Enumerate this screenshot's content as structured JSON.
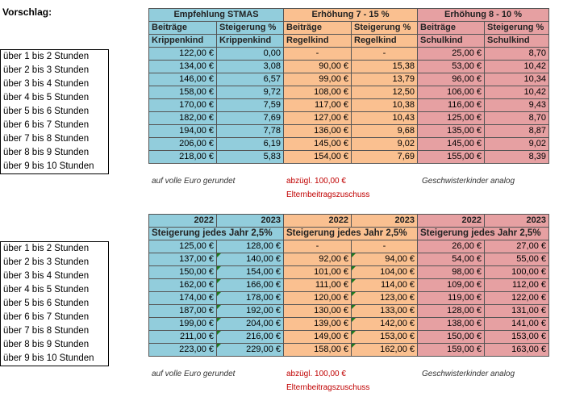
{
  "title": "Vorschlag:",
  "hours": [
    "über 1 bis 2 Stunden",
    "über 2 bis 3 Stunden",
    "über 3 bis 4 Stunden",
    "über 4 bis 5 Stunden",
    "über 5 bis 6 Stunden",
    "über 6 bis 7 Stunden",
    "über 7 bis 8 Stunden",
    "über 8 bis 9 Stunden",
    "über 9 bis 10 Stunden"
  ],
  "table1": {
    "groups": [
      "Empfehlung STMAS",
      "Erhöhung 7 - 15 %",
      "Erhöhung 8 - 10 %"
    ],
    "sub1": [
      "Beiträge",
      "Steigerung %",
      "Beiträge",
      "Steigerung %",
      "Beiträge",
      "Steigerung %"
    ],
    "sub2": [
      "Krippenkind",
      "Krippenkind",
      "Regelkind",
      "Regelkind",
      "Schulkind",
      "Schulkind"
    ],
    "rows": [
      [
        "122,00 €",
        "0,00",
        "-",
        "-",
        "25,00 €",
        "8,70"
      ],
      [
        "134,00 €",
        "3,08",
        "90,00 €",
        "15,38",
        "53,00 €",
        "10,42"
      ],
      [
        "146,00 €",
        "6,57",
        "99,00 €",
        "13,79",
        "96,00 €",
        "10,34"
      ],
      [
        "158,00 €",
        "9,72",
        "108,00 €",
        "12,50",
        "106,00 €",
        "10,42"
      ],
      [
        "170,00 €",
        "7,59",
        "117,00 €",
        "10,38",
        "116,00 €",
        "9,43"
      ],
      [
        "182,00 €",
        "7,69",
        "127,00 €",
        "10,43",
        "125,00 €",
        "8,70"
      ],
      [
        "194,00 €",
        "7,78",
        "136,00 €",
        "9,68",
        "135,00 €",
        "8,87"
      ],
      [
        "206,00 €",
        "6,19",
        "145,00 €",
        "9,02",
        "145,00 €",
        "9,02"
      ],
      [
        "218,00 €",
        "5,83",
        "154,00 €",
        "7,69",
        "155,00 €",
        "8,39"
      ]
    ]
  },
  "table2": {
    "years": [
      "2022",
      "2023",
      "2022",
      "2023",
      "2022",
      "2023"
    ],
    "groups": [
      "Steigerung jedes Jahr 2,5%",
      "Steigerung jedes Jahr 2,5%",
      "Steigerung jedes Jahr 2,5%"
    ],
    "rows": [
      [
        "125,00 €",
        "128,00 €",
        "-",
        "-",
        "26,00 €",
        "27,00 €"
      ],
      [
        "137,00 €",
        "140,00 €",
        "92,00 €",
        "94,00 €",
        "54,00 €",
        "55,00 €"
      ],
      [
        "150,00 €",
        "154,00 €",
        "101,00 €",
        "104,00 €",
        "98,00 €",
        "100,00 €"
      ],
      [
        "162,00 €",
        "166,00 €",
        "111,00 €",
        "114,00 €",
        "109,00 €",
        "112,00 €"
      ],
      [
        "174,00 €",
        "178,00 €",
        "120,00 €",
        "123,00 €",
        "119,00 €",
        "122,00 €"
      ],
      [
        "187,00 €",
        "192,00 €",
        "130,00 €",
        "133,00 €",
        "128,00 €",
        "131,00 €"
      ],
      [
        "199,00 €",
        "204,00 €",
        "139,00 €",
        "142,00 €",
        "138,00 €",
        "141,00 €"
      ],
      [
        "211,00 €",
        "216,00 €",
        "149,00 €",
        "153,00 €",
        "150,00 €",
        "153,00 €"
      ],
      [
        "223,00 €",
        "229,00 €",
        "158,00 €",
        "162,00 €",
        "159,00 €",
        "163,00 €"
      ]
    ]
  },
  "notes": {
    "rounded": "auf volle Euro gerundet",
    "subsidy1": "abzügl. 100,00 €",
    "subsidy2": "Elternbeitragszuschuss",
    "siblings": "Geschwisterkinder analog"
  }
}
